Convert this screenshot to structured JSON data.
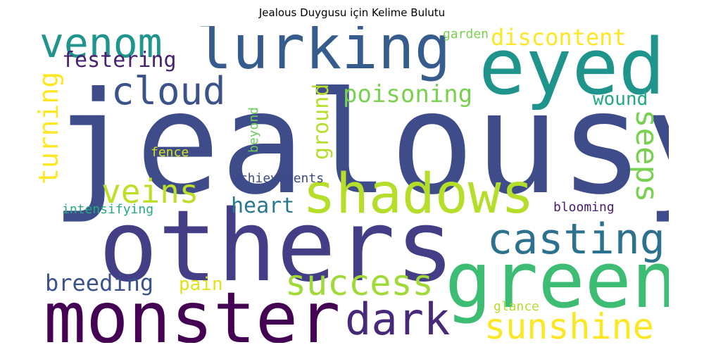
{
  "title": "Jealous Duygusu için Kelime Bulutu",
  "words": {
    "jealousy": {
      "text": "jealousy",
      "color": "#3e4c8a"
    },
    "others": {
      "text": "others",
      "color": "#433e85"
    },
    "monster": {
      "text": "monster",
      "color": "#440154"
    },
    "green": {
      "text": "green",
      "color": "#3dbc74"
    },
    "eyed": {
      "text": "eyed",
      "color": "#1f948c"
    },
    "lurking": {
      "text": "lurking",
      "color": "#365c8d"
    },
    "shadows": {
      "text": "shadows",
      "color": "#b5de2b"
    },
    "venom": {
      "text": "venom",
      "color": "#1f958b"
    },
    "cloud": {
      "text": "cloud",
      "color": "#3b528b"
    },
    "casting": {
      "text": "casting",
      "color": "#2c728e"
    },
    "sunshine": {
      "text": "sunshine",
      "color": "#fde725"
    },
    "dark": {
      "text": "dark",
      "color": "#482878"
    },
    "success": {
      "text": "success",
      "color": "#a0da39"
    },
    "veins": {
      "text": "veins",
      "color": "#bddf26"
    },
    "poisoning": {
      "text": "poisoning",
      "color": "#7ad151"
    },
    "discontent": {
      "text": "discontent",
      "color": "#fde725"
    },
    "festering": {
      "text": "festering",
      "color": "#482173"
    },
    "breeding": {
      "text": "breeding",
      "color": "#3b528b"
    },
    "heart": {
      "text": "heart",
      "color": "#2a788e"
    },
    "seeps": {
      "text": "seeps",
      "color": "#7ad151"
    },
    "turning": {
      "text": "turning",
      "color": "#fde725"
    },
    "ground": {
      "text": "ground",
      "color": "#b5de2b"
    },
    "wound": {
      "text": "wound",
      "color": "#22a884"
    },
    "pain": {
      "text": "pain",
      "color": "#dfe318"
    },
    "achievements": {
      "text": "achievements",
      "color": "#3e4989"
    },
    "intensifying": {
      "text": "intensifying",
      "color": "#25ab82"
    },
    "blooming": {
      "text": "blooming",
      "color": "#481b6d"
    },
    "garden": {
      "text": "garden",
      "color": "#7ad151"
    },
    "beyond": {
      "text": "beyond",
      "color": "#6ccd5a"
    },
    "fence": {
      "text": "fence",
      "color": "#d8e219"
    },
    "glance": {
      "text": "glance",
      "color": "#b5de2b"
    }
  }
}
